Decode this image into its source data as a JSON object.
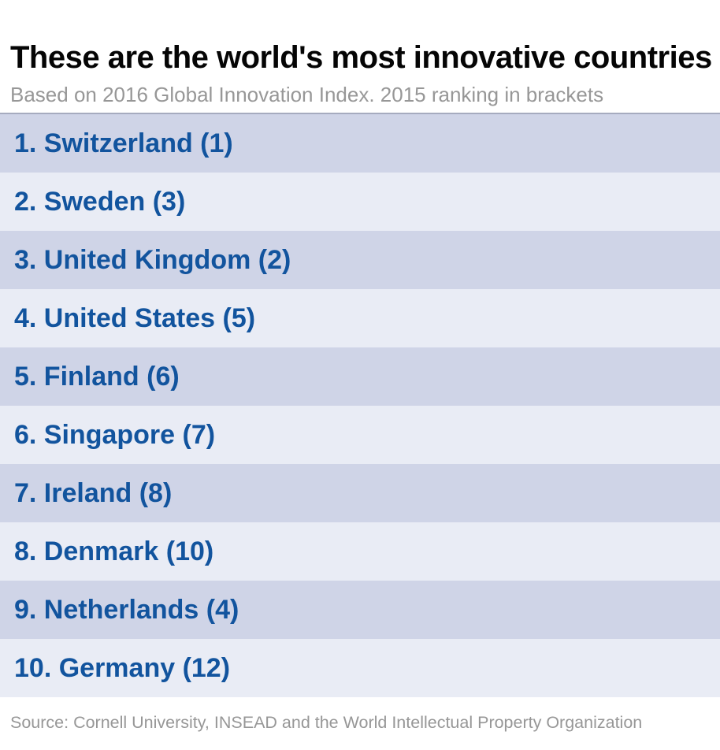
{
  "header": {
    "title": "These are the world's most innovative countries",
    "subtitle": "Based on 2016 Global Innovation Index. 2015 ranking in brackets"
  },
  "ranking": {
    "rows": [
      {
        "label": "1. Switzerland (1)"
      },
      {
        "label": "2. Sweden (3)"
      },
      {
        "label": "3. United Kingdom (2)"
      },
      {
        "label": "4. United States (5)"
      },
      {
        "label": "5. Finland (6)"
      },
      {
        "label": "6. Singapore (7)"
      },
      {
        "label": "7. Ireland (8)"
      },
      {
        "label": "8. Denmark (10)"
      },
      {
        "label": "9. Netherlands (4)"
      },
      {
        "label": "10. Germany (12)"
      }
    ]
  },
  "footer": {
    "source": "Source: Cornell University, INSEAD and the World Intellectual Property Organization"
  },
  "colors": {
    "title_text": "#050505",
    "muted_text": "#979797",
    "row_dark": "#cfd4e7",
    "row_light": "#e9ecf5",
    "row_text": "#12549e",
    "list_border_top": "#a6abbf"
  },
  "chart_data": {
    "type": "table",
    "title": "These are the world's most innovative countries",
    "subtitle": "Based on 2016 Global Innovation Index. 2015 ranking in brackets",
    "source": "Source: Cornell University, INSEAD and the World Intellectual Property Organization",
    "columns": [
      "rank_2016",
      "country",
      "rank_2015"
    ],
    "rows": [
      [
        1,
        "Switzerland",
        1
      ],
      [
        2,
        "Sweden",
        3
      ],
      [
        3,
        "United Kingdom",
        2
      ],
      [
        4,
        "United States",
        5
      ],
      [
        5,
        "Finland",
        6
      ],
      [
        6,
        "Singapore",
        7
      ],
      [
        7,
        "Ireland",
        8
      ],
      [
        8,
        "Denmark",
        10
      ],
      [
        9,
        "Netherlands",
        4
      ],
      [
        10,
        "Germany",
        12
      ]
    ],
    "layout": {
      "legend": "none",
      "grid": "off",
      "row_striping": "alternating"
    }
  }
}
